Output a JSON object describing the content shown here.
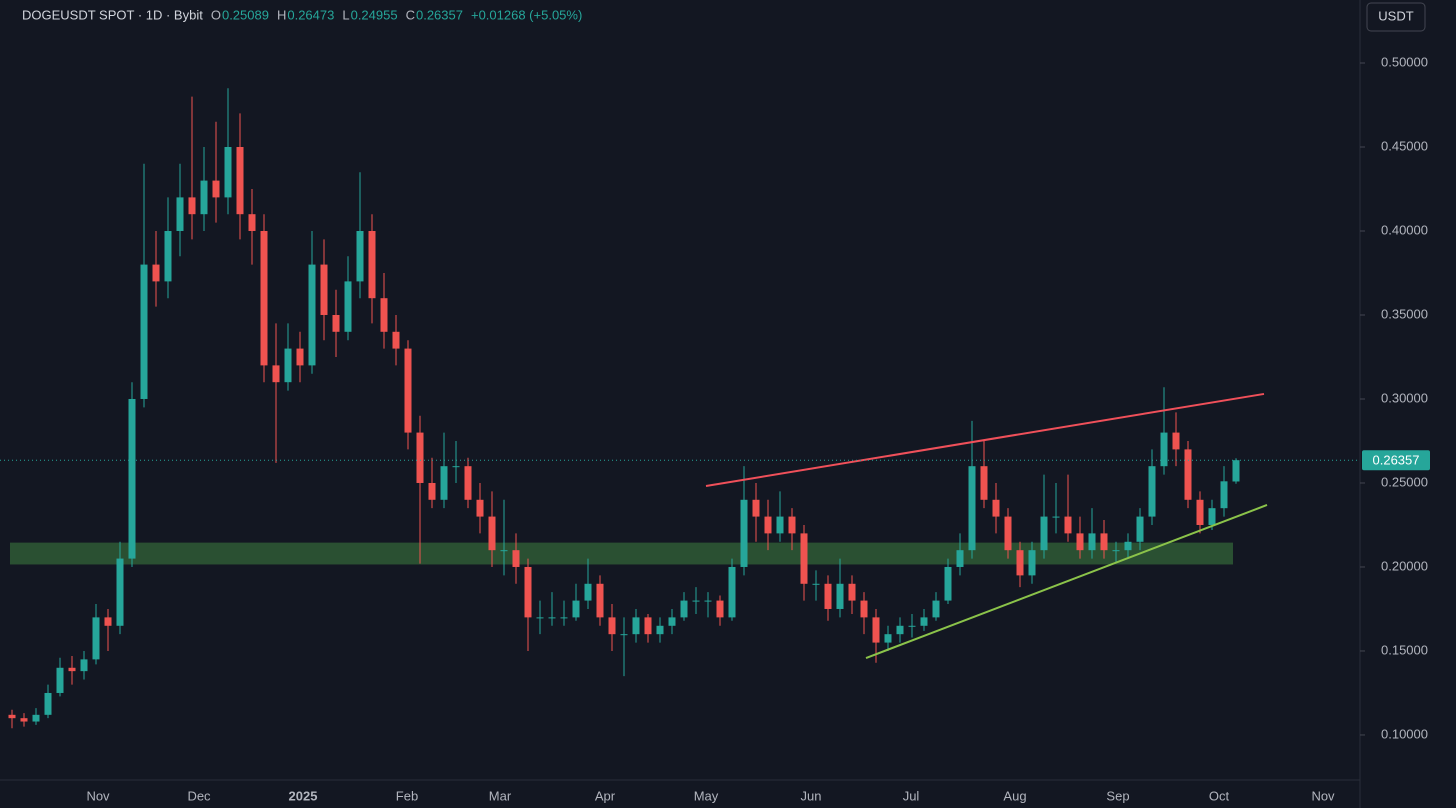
{
  "chart_data": {
    "type": "candlestick",
    "title": "DOGEUSDT SPOT · 1D · Bybit",
    "header": {
      "o": "O",
      "h": "H",
      "l": "L",
      "c": "C",
      "change": "+0.01268 (+5.05%)"
    },
    "currency": "USDT",
    "x_labels": [
      "Nov",
      "Dec",
      "2025",
      "Feb",
      "Mar",
      "Apr",
      "May",
      "Jun",
      "Jul",
      "Aug",
      "Sep",
      "Oct",
      "Nov"
    ],
    "ylim": [
      0.0732,
      0.5375
    ],
    "yticks": [
      {
        "value": 0.1,
        "label": "0.10000"
      },
      {
        "value": 0.15,
        "label": "0.15000"
      },
      {
        "value": 0.2,
        "label": "0.20000"
      },
      {
        "value": 0.25,
        "label": "0.25000"
      },
      {
        "value": 0.3,
        "label": "0.30000"
      },
      {
        "value": 0.35,
        "label": "0.35000"
      },
      {
        "value": 0.4,
        "label": "0.40000"
      },
      {
        "value": 0.45,
        "label": "0.45000"
      },
      {
        "value": 0.5,
        "label": "0.50000"
      }
    ],
    "up_color": "#26a69a",
    "down_color": "#ef5350",
    "open": [
      0.112,
      0.11,
      0.108,
      0.112,
      0.125,
      0.14,
      0.138,
      0.145,
      0.17,
      0.165,
      0.205,
      0.3,
      0.38,
      0.37,
      0.4,
      0.42,
      0.41,
      0.43,
      0.42,
      0.45,
      0.41,
      0.4,
      0.32,
      0.31,
      0.33,
      0.32,
      0.38,
      0.35,
      0.34,
      0.37,
      0.4,
      0.36,
      0.34,
      0.33,
      0.28,
      0.25,
      0.24,
      0.26,
      0.26,
      0.24,
      0.23,
      0.21,
      0.21,
      0.2,
      0.17,
      0.17,
      0.17,
      0.17,
      0.18,
      0.19,
      0.17,
      0.16,
      0.16,
      0.17,
      0.16,
      0.165,
      0.17,
      0.18,
      0.18,
      0.18,
      0.17,
      0.2,
      0.24,
      0.23,
      0.22,
      0.23,
      0.22,
      0.19,
      0.19,
      0.175,
      0.19,
      0.18,
      0.17,
      0.155,
      0.16,
      0.165,
      0.165,
      0.17,
      0.18,
      0.2,
      0.21,
      0.26,
      0.24,
      0.23,
      0.21,
      0.195,
      0.21,
      0.23,
      0.23,
      0.22,
      0.21,
      0.22,
      0.21,
      0.21,
      0.215,
      0.23,
      0.26,
      0.28,
      0.27,
      0.24,
      0.225,
      0.235,
      0.25089
    ],
    "high": [
      0.115,
      0.113,
      0.116,
      0.13,
      0.146,
      0.147,
      0.15,
      0.178,
      0.175,
      0.215,
      0.31,
      0.44,
      0.4,
      0.42,
      0.44,
      0.48,
      0.45,
      0.465,
      0.485,
      0.47,
      0.425,
      0.41,
      0.345,
      0.345,
      0.34,
      0.4,
      0.395,
      0.365,
      0.385,
      0.435,
      0.41,
      0.375,
      0.35,
      0.335,
      0.29,
      0.265,
      0.28,
      0.275,
      0.265,
      0.25,
      0.245,
      0.24,
      0.22,
      0.205,
      0.18,
      0.185,
      0.18,
      0.19,
      0.205,
      0.195,
      0.178,
      0.17,
      0.175,
      0.172,
      0.17,
      0.175,
      0.185,
      0.188,
      0.185,
      0.183,
      0.205,
      0.26,
      0.25,
      0.24,
      0.245,
      0.235,
      0.225,
      0.198,
      0.195,
      0.205,
      0.195,
      0.185,
      0.175,
      0.165,
      0.17,
      0.172,
      0.175,
      0.185,
      0.205,
      0.22,
      0.287,
      0.275,
      0.25,
      0.235,
      0.215,
      0.215,
      0.255,
      0.25,
      0.255,
      0.23,
      0.235,
      0.228,
      0.215,
      0.22,
      0.235,
      0.27,
      0.307,
      0.292,
      0.275,
      0.245,
      0.24,
      0.26,
      0.26473
    ],
    "low": [
      0.104,
      0.105,
      0.106,
      0.11,
      0.123,
      0.13,
      0.133,
      0.142,
      0.15,
      0.16,
      0.2,
      0.295,
      0.355,
      0.36,
      0.385,
      0.395,
      0.4,
      0.405,
      0.41,
      0.395,
      0.38,
      0.31,
      0.262,
      0.305,
      0.31,
      0.315,
      0.335,
      0.325,
      0.335,
      0.36,
      0.345,
      0.33,
      0.32,
      0.27,
      0.202,
      0.235,
      0.235,
      0.25,
      0.235,
      0.22,
      0.2,
      0.195,
      0.19,
      0.15,
      0.16,
      0.165,
      0.165,
      0.168,
      0.175,
      0.165,
      0.15,
      0.135,
      0.155,
      0.155,
      0.155,
      0.16,
      0.168,
      0.172,
      0.17,
      0.165,
      0.168,
      0.195,
      0.215,
      0.21,
      0.215,
      0.21,
      0.18,
      0.18,
      0.168,
      0.17,
      0.172,
      0.16,
      0.143,
      0.15,
      0.155,
      0.158,
      0.162,
      0.168,
      0.178,
      0.195,
      0.205,
      0.235,
      0.22,
      0.205,
      0.188,
      0.19,
      0.205,
      0.22,
      0.215,
      0.205,
      0.205,
      0.205,
      0.203,
      0.205,
      0.21,
      0.225,
      0.255,
      0.26,
      0.235,
      0.22,
      0.222,
      0.23,
      0.24955
    ],
    "close": [
      0.11,
      0.108,
      0.112,
      0.125,
      0.14,
      0.138,
      0.145,
      0.17,
      0.165,
      0.205,
      0.3,
      0.38,
      0.37,
      0.4,
      0.42,
      0.41,
      0.43,
      0.42,
      0.45,
      0.41,
      0.4,
      0.32,
      0.31,
      0.33,
      0.32,
      0.38,
      0.35,
      0.34,
      0.37,
      0.4,
      0.36,
      0.34,
      0.33,
      0.28,
      0.25,
      0.24,
      0.26,
      0.26,
      0.24,
      0.23,
      0.21,
      0.21,
      0.2,
      0.17,
      0.17,
      0.17,
      0.17,
      0.18,
      0.19,
      0.17,
      0.16,
      0.16,
      0.17,
      0.16,
      0.165,
      0.17,
      0.18,
      0.18,
      0.18,
      0.17,
      0.2,
      0.24,
      0.23,
      0.22,
      0.23,
      0.22,
      0.19,
      0.19,
      0.175,
      0.19,
      0.18,
      0.17,
      0.155,
      0.16,
      0.165,
      0.165,
      0.17,
      0.18,
      0.2,
      0.21,
      0.26,
      0.24,
      0.23,
      0.21,
      0.195,
      0.21,
      0.23,
      0.23,
      0.22,
      0.21,
      0.22,
      0.21,
      0.21,
      0.215,
      0.23,
      0.26,
      0.28,
      0.27,
      0.24,
      0.225,
      0.235,
      0.251,
      0.26357
    ],
    "zone": {
      "prices": [
        0.2015,
        0.2145
      ],
      "color": "#2f5a35"
    },
    "trendlines": [
      {
        "prices": [
          0.2482,
          0.303
        ],
        "color": "#f0505a"
      },
      {
        "prices": [
          0.1458,
          0.2369
        ],
        "color": "#8bc34a"
      }
    ]
  }
}
